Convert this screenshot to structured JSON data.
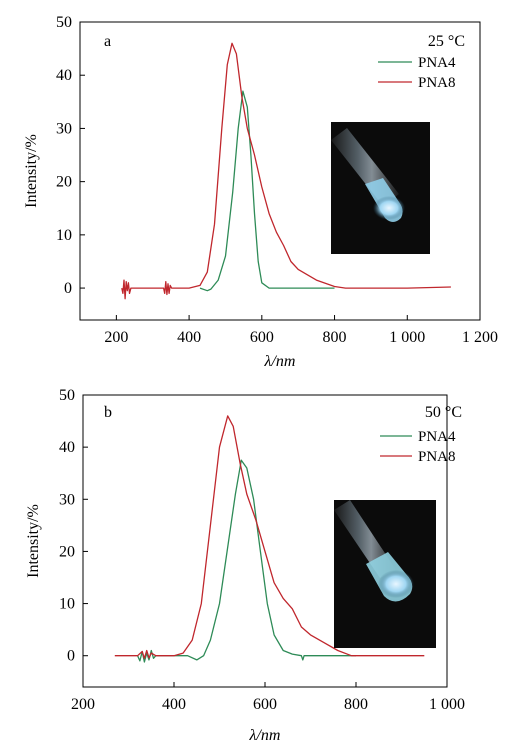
{
  "chart_data": [
    {
      "type": "line",
      "panel_label": "a",
      "temperature_label": "25 °C",
      "xlabel": "λ/nm",
      "ylabel": "Intensity/%",
      "xlim": [
        100,
        1200
      ],
      "ylim": [
        -6,
        50
      ],
      "xticks": [
        200,
        400,
        600,
        800,
        1000,
        1200
      ],
      "xtick_labels": [
        "200",
        "400",
        "600",
        "800",
        "1 000",
        "1 200"
      ],
      "yticks": [
        0,
        10,
        20,
        30,
        40,
        50
      ],
      "ytick_labels": [
        "0",
        "10",
        "20",
        "30",
        "40",
        "50"
      ],
      "legend_position": "top-right",
      "inset": "photo of glowing vial",
      "series": [
        {
          "name": "PNA4",
          "color": "#2e8b57",
          "points": [
            [
              430,
              0
            ],
            [
              450,
              -0.5
            ],
            [
              460,
              -0.2
            ],
            [
              480,
              1.5
            ],
            [
              500,
              6
            ],
            [
              520,
              18
            ],
            [
              535,
              30
            ],
            [
              548,
              37
            ],
            [
              560,
              34
            ],
            [
              570,
              25
            ],
            [
              580,
              14
            ],
            [
              590,
              5
            ],
            [
              600,
              1
            ],
            [
              620,
              0
            ],
            [
              700,
              0
            ],
            [
              800,
              0
            ]
          ]
        },
        {
          "name": "PNA8",
          "color": "#c0272d",
          "points": [
            [
              215,
              0
            ],
            [
              218,
              -1
            ],
            [
              221,
              1.5
            ],
            [
              224,
              -2
            ],
            [
              227,
              1.2
            ],
            [
              230,
              -0.5
            ],
            [
              233,
              1
            ],
            [
              236,
              -1
            ],
            [
              240,
              0
            ],
            [
              260,
              0
            ],
            [
              300,
              0
            ],
            [
              330,
              0
            ],
            [
              333,
              -1
            ],
            [
              336,
              1.2
            ],
            [
              339,
              -1.2
            ],
            [
              342,
              0.8
            ],
            [
              345,
              -1
            ],
            [
              348,
              0.5
            ],
            [
              352,
              0
            ],
            [
              400,
              0
            ],
            [
              430,
              0.5
            ],
            [
              450,
              3
            ],
            [
              470,
              12
            ],
            [
              490,
              30
            ],
            [
              505,
              42
            ],
            [
              518,
              46
            ],
            [
              530,
              44
            ],
            [
              545,
              36
            ],
            [
              560,
              30
            ],
            [
              580,
              25
            ],
            [
              600,
              19
            ],
            [
              620,
              14
            ],
            [
              640,
              10.5
            ],
            [
              660,
              8
            ],
            [
              680,
              5
            ],
            [
              700,
              3.5
            ],
            [
              750,
              1.5
            ],
            [
              800,
              0.3
            ],
            [
              830,
              0
            ],
            [
              900,
              0
            ],
            [
              1000,
              0
            ],
            [
              1120,
              0.2
            ]
          ]
        }
      ]
    },
    {
      "type": "line",
      "panel_label": "b",
      "temperature_label": "50 °C",
      "xlabel": "λ/nm",
      "ylabel": "Intensity/%",
      "xlim": [
        200,
        1000
      ],
      "ylim": [
        -6,
        50
      ],
      "xticks": [
        200,
        400,
        600,
        800,
        1000
      ],
      "xtick_labels": [
        "200",
        "400",
        "600",
        "800",
        "1 000"
      ],
      "yticks": [
        0,
        10,
        20,
        30,
        40,
        50
      ],
      "ytick_labels": [
        "0",
        "10",
        "20",
        "30",
        "40",
        "50"
      ],
      "legend_position": "top-right",
      "inset": "photo of glowing vial",
      "series": [
        {
          "name": "PNA4",
          "color": "#2e8b57",
          "points": [
            [
              320,
              0
            ],
            [
              325,
              -1
            ],
            [
              330,
              0.8
            ],
            [
              335,
              -1.2
            ],
            [
              340,
              0.5
            ],
            [
              345,
              -0.8
            ],
            [
              350,
              1
            ],
            [
              355,
              -0.5
            ],
            [
              360,
              0
            ],
            [
              400,
              0
            ],
            [
              430,
              0
            ],
            [
              450,
              -0.8
            ],
            [
              465,
              0
            ],
            [
              480,
              3
            ],
            [
              500,
              10
            ],
            [
              520,
              22
            ],
            [
              535,
              31
            ],
            [
              548,
              37.5
            ],
            [
              560,
              36
            ],
            [
              575,
              30
            ],
            [
              590,
              20
            ],
            [
              605,
              10
            ],
            [
              620,
              4
            ],
            [
              640,
              1
            ],
            [
              660,
              0.3
            ],
            [
              680,
              0
            ],
            [
              683,
              -0.8
            ],
            [
              686,
              0
            ],
            [
              700,
              0
            ],
            [
              800,
              0
            ]
          ]
        },
        {
          "name": "PNA8",
          "color": "#c0272d",
          "points": [
            [
              270,
              0
            ],
            [
              300,
              0
            ],
            [
              320,
              0
            ],
            [
              330,
              0.8
            ],
            [
              335,
              -0.5
            ],
            [
              340,
              1
            ],
            [
              345,
              -0.4
            ],
            [
              350,
              0.5
            ],
            [
              360,
              0
            ],
            [
              400,
              0
            ],
            [
              420,
              0.5
            ],
            [
              440,
              3
            ],
            [
              460,
              10
            ],
            [
              480,
              25
            ],
            [
              500,
              40
            ],
            [
              518,
              46
            ],
            [
              530,
              44
            ],
            [
              545,
              37
            ],
            [
              560,
              31
            ],
            [
              580,
              26
            ],
            [
              600,
              20
            ],
            [
              620,
              14
            ],
            [
              640,
              11
            ],
            [
              660,
              9
            ],
            [
              680,
              5.5
            ],
            [
              700,
              4
            ],
            [
              730,
              2.5
            ],
            [
              760,
              1
            ],
            [
              790,
              0
            ],
            [
              850,
              0
            ],
            [
              950,
              0
            ]
          ]
        }
      ]
    }
  ]
}
